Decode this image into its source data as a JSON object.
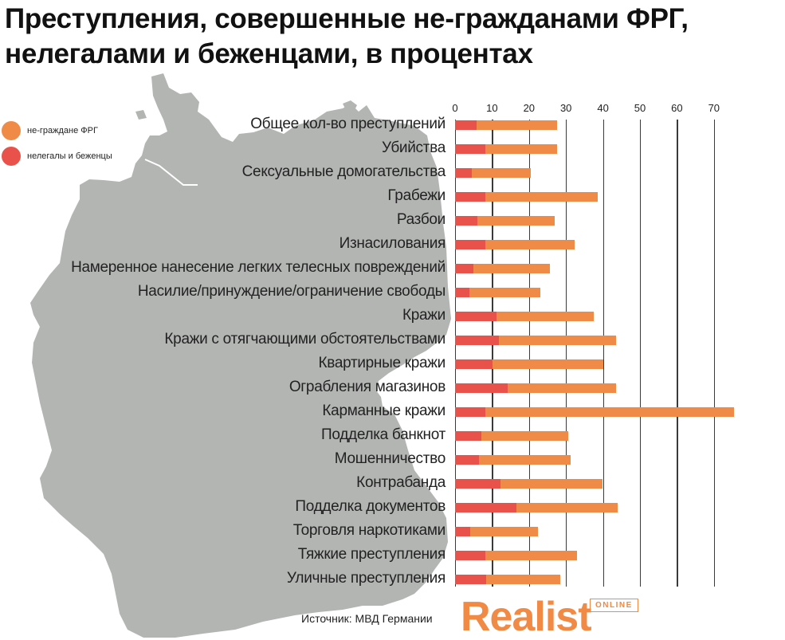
{
  "title": {
    "line1": "Преступления, совершенные не-гражданами ФРГ,",
    "line2": "нелегалами и беженцами, в процентах"
  },
  "legend": [
    {
      "label": "не-граждане ФРГ",
      "color": "#ef8b47"
    },
    {
      "label": "нелегалы и беженцы",
      "color": "#e8524a"
    }
  ],
  "footer": {
    "source": "Источник: МВД Германии",
    "logo": "Realist",
    "logo_badge": "ONLINE"
  },
  "chart_data": {
    "type": "bar",
    "orientation": "horizontal",
    "stacked": false,
    "title": "Преступления, совершенные не-гражданами ФРГ, нелегалами и беженцами, в процентах",
    "xlabel": "",
    "ylabel": "",
    "xlim": [
      0,
      75
    ],
    "x_ticks": [
      0,
      10,
      20,
      30,
      40,
      50,
      60,
      70
    ],
    "grid": true,
    "legend_position": "top-left",
    "categories": [
      "Общее кол-во преступлений",
      "Убийства",
      "Сексуальные домогательства",
      "Грабежи",
      "Разбои",
      "Изнасилования",
      "Намеренное нанесение легких телесных повреждений",
      "Насилие/принуждение/ограничение свободы",
      "Кражи",
      "Кражи с отягчающими обстоятельствами",
      "Квартирные кражи",
      "Ограбления магазинов",
      "Карманные кражи",
      "Подделка банкнот",
      "Мошенничество",
      "Контрабанда",
      "Подделка документов",
      "Торговля наркотиками",
      "Тяжкие преступления",
      "Уличные преступления"
    ],
    "series": [
      {
        "name": "не-граждане ФРГ",
        "color": "#ef8b47",
        "values": [
          27.6,
          27.6,
          20.5,
          38.6,
          27.0,
          32.3,
          25.6,
          23.0,
          37.5,
          43.5,
          40.0,
          43.5,
          75.4,
          30.6,
          31.2,
          39.9,
          44.0,
          22.4,
          33.0,
          28.4
        ]
      },
      {
        "name": "нелегалы и беженцы",
        "color": "#e8524a",
        "values": [
          5.8,
          8.2,
          4.5,
          8.2,
          6.0,
          8.2,
          5.0,
          3.9,
          11.2,
          11.8,
          10.1,
          14.2,
          8.2,
          7.1,
          6.5,
          12.3,
          16.6,
          4.1,
          8.2,
          8.4
        ]
      }
    ],
    "source": "Источник: МВД Германии"
  }
}
